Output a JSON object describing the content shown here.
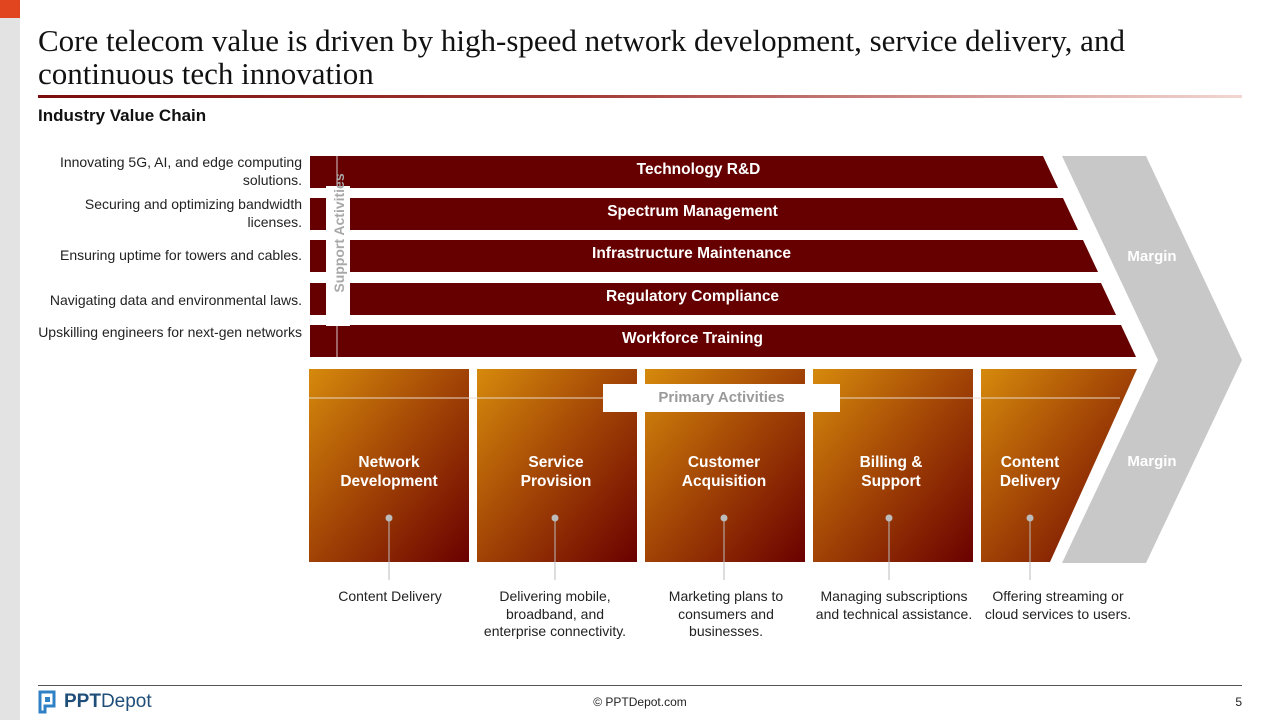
{
  "title": "Core telecom value is driven by high-speed network development, service delivery, and continuous tech innovation",
  "subtitle": "Industry Value Chain",
  "support_label": "Support Activities",
  "primary_label": "Primary Activities",
  "margin_top": "Margin",
  "margin_bottom": "Margin",
  "support_activities": [
    {
      "label": "Technology R&D",
      "description": "Innovating 5G, AI, and edge computing solutions."
    },
    {
      "label": "Spectrum Management",
      "description": "Securing and optimizing bandwidth licenses."
    },
    {
      "label": "Infrastructure Maintenance",
      "description": "Ensuring uptime for towers and cables."
    },
    {
      "label": "Regulatory Compliance",
      "description": "Navigating data and environmental laws."
    },
    {
      "label": "Workforce Training",
      "description": "Upskilling engineers for next-gen networks"
    }
  ],
  "primary_activities": [
    {
      "label": "Network Development",
      "description": "Content Delivery"
    },
    {
      "label": "Service Provision",
      "description": "Delivering mobile, broadband, and enterprise connectivity."
    },
    {
      "label": "Customer Acquisition",
      "description": "Marketing plans to consumers and businesses."
    },
    {
      "label": "Billing & Support",
      "description": "Managing subscriptions and technical assistance."
    },
    {
      "label": "Content Delivery",
      "description": "Offering streaming or cloud services to users."
    }
  ],
  "footer": {
    "logo_bold": "PPT",
    "logo_light": "Depot",
    "copyright": "© PPTDepot.com",
    "page": "5"
  },
  "colors": {
    "support_bar": "#660000",
    "primary_light": "#d68a0c",
    "primary_dark": "#6b0000",
    "margin_chevron": "#c8c8c8",
    "accent": "#e0451f"
  }
}
